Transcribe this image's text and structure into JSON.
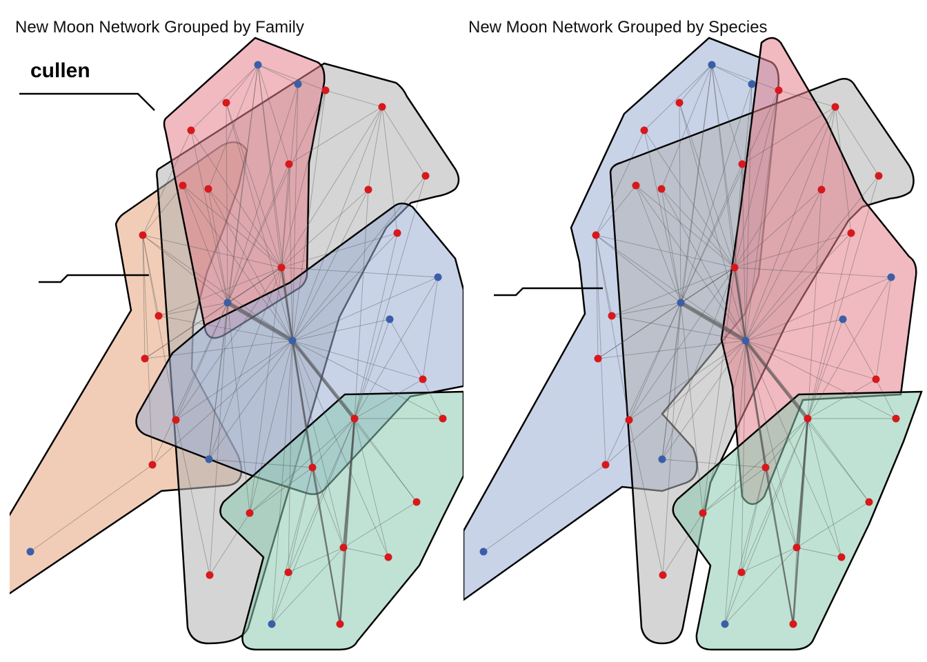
{
  "titles": {
    "left": "New Moon Network Grouped by Family",
    "right": "New Moon Network Grouped by Species"
  },
  "labels": {
    "family_label": "cullen"
  },
  "colors": {
    "node_red": "#d7191c",
    "node_blue": "#3a5fa8",
    "hull_red": "#e3828c",
    "hull_gray": "#b3b3b3",
    "hull_blue": "#9aaed6",
    "hull_orange": "#e6a47c",
    "hull_green": "#8ccab0",
    "hull_stroke": "#000000"
  }
}
